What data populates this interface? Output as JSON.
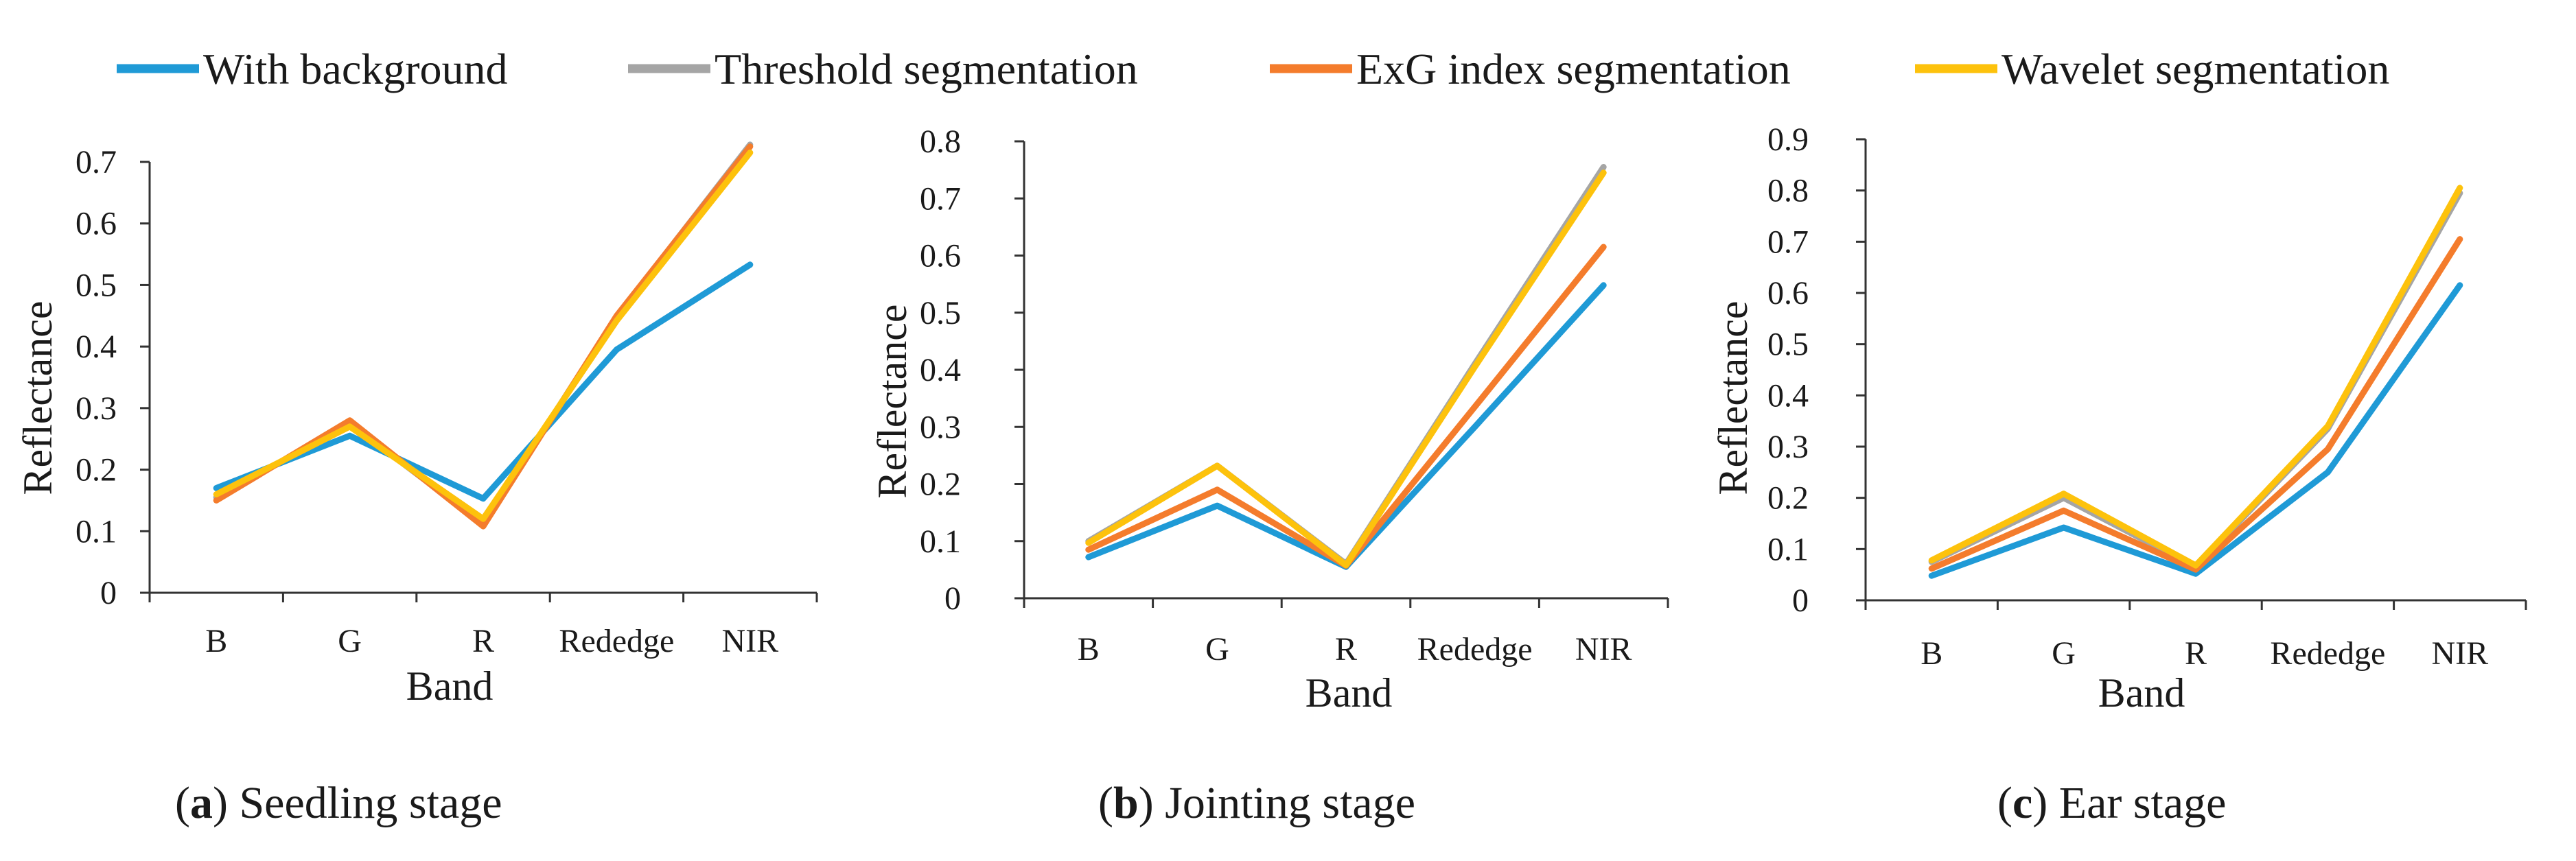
{
  "legend": [
    {
      "name": "With background",
      "color": "#1f9ad6"
    },
    {
      "name": "Threshold segmentation",
      "color": "#a5a5a5"
    },
    {
      "name": "ExG index segmentation",
      "color": "#f47c2c"
    },
    {
      "name": "Wavelet segmentation",
      "color": "#fdc20c"
    }
  ],
  "chart_data": [
    {
      "type": "line",
      "caption_letter": "a",
      "caption_text": "Seedling stage",
      "xlabel": "Band",
      "ylabel": "Reflectance",
      "categories": [
        "B",
        "G",
        "R",
        "Rededge",
        "NIR"
      ],
      "ylim": [
        0,
        0.7
      ],
      "yticks": [
        "0",
        "0.1",
        "0.2",
        "0.3",
        "0.4",
        "0.5",
        "0.6",
        "0.7"
      ],
      "series": [
        {
          "name": "With background",
          "color": "#1f9ad6",
          "values": [
            0.17,
            0.255,
            0.153,
            0.395,
            0.533
          ]
        },
        {
          "name": "Threshold segmentation",
          "color": "#a5a5a5",
          "values": [
            0.155,
            0.275,
            0.112,
            0.448,
            0.728
          ]
        },
        {
          "name": "ExG index segmentation",
          "color": "#f47c2c",
          "values": [
            0.15,
            0.28,
            0.108,
            0.45,
            0.725
          ]
        },
        {
          "name": "Wavelet segmentation",
          "color": "#fdc20c",
          "values": [
            0.16,
            0.27,
            0.12,
            0.442,
            0.715
          ]
        }
      ]
    },
    {
      "type": "line",
      "caption_letter": "b",
      "caption_text": "Jointing stage",
      "xlabel": "Band",
      "ylabel": "Reflectance",
      "categories": [
        "B",
        "G",
        "R",
        "Rededge",
        "NIR"
      ],
      "ylim": [
        0,
        0.8
      ],
      "yticks": [
        "0",
        "0.1",
        "0.2",
        "0.3",
        "0.4",
        "0.5",
        "0.6",
        "0.7",
        "0.8"
      ],
      "series": [
        {
          "name": "With background",
          "color": "#1f9ad6",
          "values": [
            0.072,
            0.162,
            0.055,
            0.3,
            0.548
          ]
        },
        {
          "name": "Threshold segmentation",
          "color": "#a5a5a5",
          "values": [
            0.1,
            0.232,
            0.06,
            0.41,
            0.755
          ]
        },
        {
          "name": "ExG index segmentation",
          "color": "#f47c2c",
          "values": [
            0.085,
            0.19,
            0.057,
            0.335,
            0.615
          ]
        },
        {
          "name": "Wavelet segmentation",
          "color": "#fdc20c",
          "values": [
            0.097,
            0.232,
            0.058,
            0.405,
            0.745
          ]
        }
      ]
    },
    {
      "type": "line",
      "caption_letter": "c",
      "caption_text": "Ear stage",
      "xlabel": "Band",
      "ylabel": "Reflectance",
      "categories": [
        "B",
        "G",
        "R",
        "Rededge",
        "NIR"
      ],
      "ylim": [
        0,
        0.9
      ],
      "yticks": [
        "0",
        "0.1",
        "0.2",
        "0.3",
        "0.4",
        "0.5",
        "0.6",
        "0.7",
        "0.8",
        "0.9"
      ],
      "series": [
        {
          "name": "With background",
          "color": "#1f9ad6",
          "values": [
            0.048,
            0.142,
            0.052,
            0.25,
            0.615
          ]
        },
        {
          "name": "Threshold segmentation",
          "color": "#a5a5a5",
          "values": [
            0.075,
            0.2,
            0.065,
            0.335,
            0.795
          ]
        },
        {
          "name": "ExG index segmentation",
          "color": "#f47c2c",
          "values": [
            0.062,
            0.175,
            0.06,
            0.295,
            0.705
          ]
        },
        {
          "name": "Wavelet segmentation",
          "color": "#fdc20c",
          "values": [
            0.078,
            0.208,
            0.068,
            0.34,
            0.805
          ]
        }
      ]
    }
  ]
}
